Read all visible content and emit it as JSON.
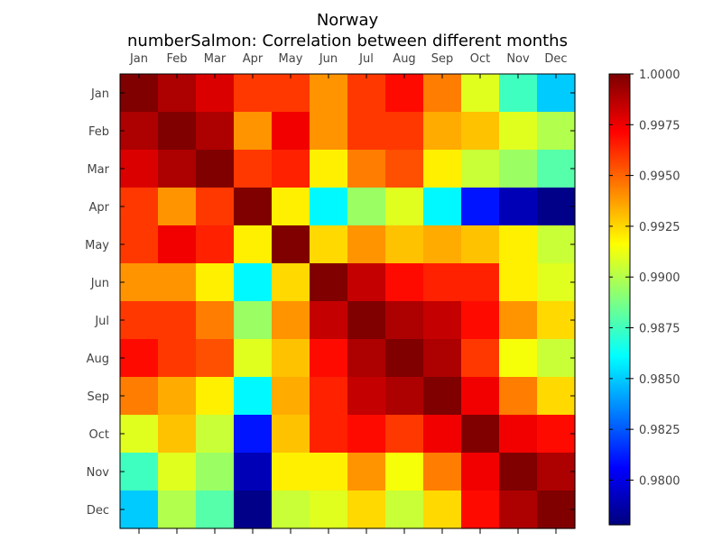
{
  "chart_data": {
    "type": "heatmap",
    "title": "Norway",
    "subtitle": "numberSalmon: Correlation between different months",
    "xlabel": "",
    "ylabel": "",
    "categories": [
      "Jan",
      "Feb",
      "Mar",
      "Apr",
      "May",
      "Jun",
      "Jul",
      "Aug",
      "Sep",
      "Oct",
      "Nov",
      "Dec"
    ],
    "x_tick_position": "top-and-bottom",
    "values": [
      [
        1.0,
        0.999,
        0.998,
        0.996,
        0.996,
        0.994,
        0.996,
        0.997,
        0.9945,
        0.991,
        0.9875,
        0.985
      ],
      [
        0.999,
        1.0,
        0.999,
        0.994,
        0.9975,
        0.994,
        0.996,
        0.996,
        0.9935,
        0.993,
        0.991,
        0.99
      ],
      [
        0.998,
        0.999,
        1.0,
        0.996,
        0.9965,
        0.992,
        0.9945,
        0.9955,
        0.992,
        0.9905,
        0.9895,
        0.988
      ],
      [
        0.996,
        0.994,
        0.996,
        1.0,
        0.992,
        0.986,
        0.9895,
        0.991,
        0.986,
        0.981,
        0.979,
        0.978
      ],
      [
        0.996,
        0.9975,
        0.9965,
        0.992,
        1.0,
        0.9925,
        0.994,
        0.993,
        0.9935,
        0.993,
        0.992,
        0.9905
      ],
      [
        0.994,
        0.994,
        0.992,
        0.986,
        0.9925,
        1.0,
        0.9985,
        0.997,
        0.9965,
        0.9965,
        0.992,
        0.991
      ],
      [
        0.996,
        0.996,
        0.9945,
        0.9895,
        0.994,
        0.9985,
        1.0,
        0.999,
        0.9985,
        0.997,
        0.994,
        0.9925
      ],
      [
        0.997,
        0.996,
        0.9955,
        0.991,
        0.993,
        0.997,
        0.999,
        1.0,
        0.999,
        0.996,
        0.9915,
        0.9905
      ],
      [
        0.9945,
        0.9935,
        0.992,
        0.986,
        0.9935,
        0.9965,
        0.9985,
        0.999,
        1.0,
        0.9975,
        0.9945,
        0.9925
      ],
      [
        0.991,
        0.993,
        0.9905,
        0.981,
        0.993,
        0.9965,
        0.997,
        0.996,
        0.9975,
        1.0,
        0.9975,
        0.997
      ],
      [
        0.9875,
        0.991,
        0.9895,
        0.979,
        0.992,
        0.992,
        0.994,
        0.9915,
        0.9945,
        0.9975,
        1.0,
        0.999
      ],
      [
        0.985,
        0.99,
        0.988,
        0.978,
        0.9905,
        0.991,
        0.9925,
        0.9905,
        0.9925,
        0.997,
        0.999,
        1.0
      ]
    ],
    "colormap": "jet",
    "vmin": 0.9778,
    "vmax": 1.0,
    "colorbar": {
      "ticks": [
        "0.9800",
        "0.9825",
        "0.9850",
        "0.9875",
        "0.9900",
        "0.9925",
        "0.9950",
        "0.9975",
        "1.0000"
      ],
      "placement": "right"
    },
    "grid": false
  }
}
